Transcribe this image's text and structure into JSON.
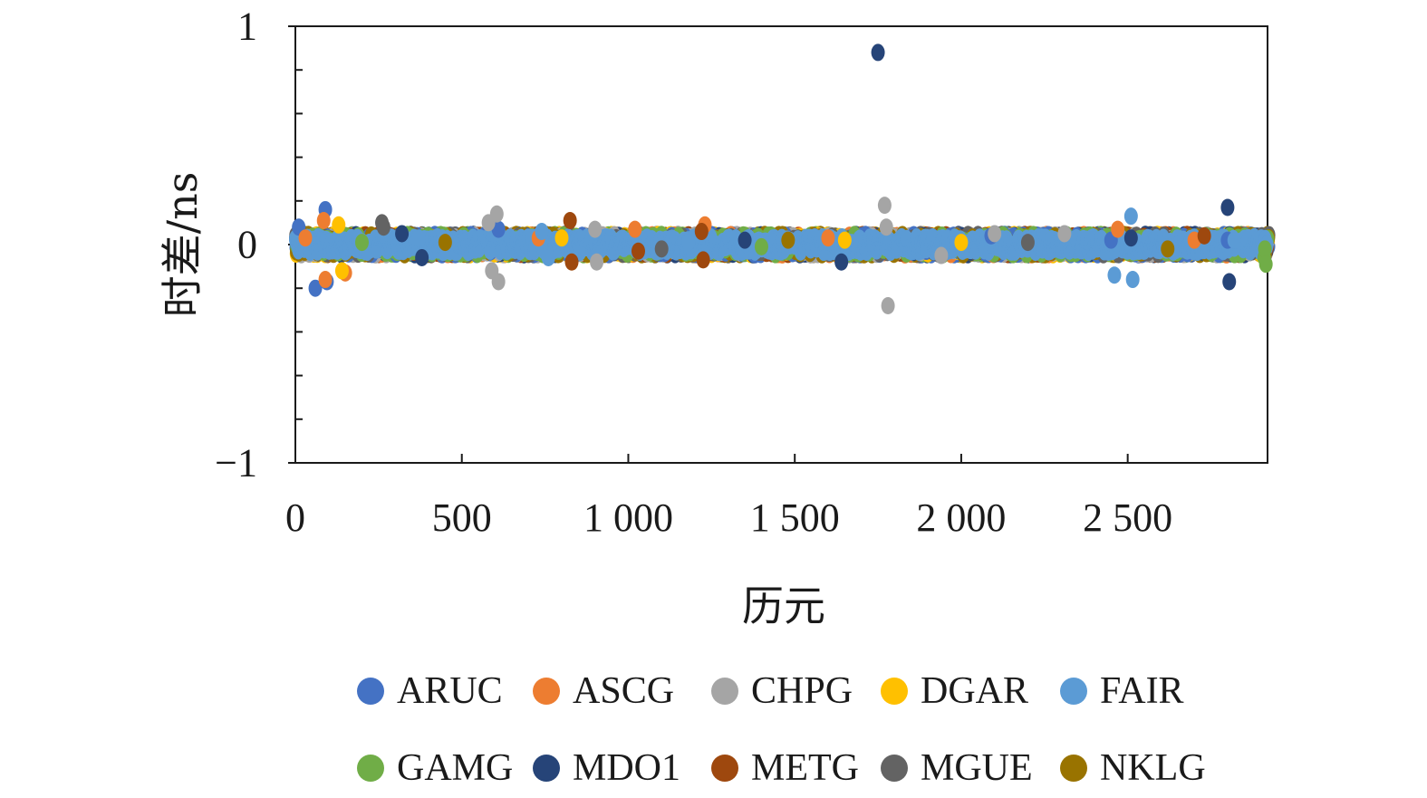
{
  "chart_data": {
    "type": "scatter",
    "title": "",
    "xlabel": "历元",
    "ylabel": "时差/ns",
    "xlim": [
      0,
      2920
    ],
    "ylim": [
      -1,
      1
    ],
    "x_ticks": [
      {
        "value": 0,
        "label": "0"
      },
      {
        "value": 500,
        "label": "500"
      },
      {
        "value": 1000,
        "label": "1 000"
      },
      {
        "value": 1500,
        "label": "1 500"
      },
      {
        "value": 2000,
        "label": "2 000"
      },
      {
        "value": 2500,
        "label": "2 500"
      }
    ],
    "y_ticks": [
      {
        "value": 1,
        "label": "1"
      },
      {
        "value": 0,
        "label": "0"
      },
      {
        "value": -1,
        "label": "−1"
      }
    ],
    "y_minor_ticks": [
      0.8,
      0.6,
      0.4,
      0.2,
      -0.2,
      -0.4,
      -0.6,
      -0.8
    ],
    "grid": false,
    "legend_position": "bottom",
    "series": [
      {
        "name": "ARUC",
        "color": "#4472C4",
        "points": [
          [
            10,
            0.08
          ],
          [
            60,
            -0.2
          ],
          [
            90,
            0.16
          ],
          [
            95,
            -0.17
          ],
          [
            610,
            0.07
          ],
          [
            2090,
            0.04
          ],
          [
            2450,
            0.02
          ],
          [
            2800,
            0.02
          ]
        ]
      },
      {
        "name": "ASCG",
        "color": "#ED7D31",
        "points": [
          [
            30,
            0.03
          ],
          [
            85,
            0.11
          ],
          [
            90,
            -0.16
          ],
          [
            150,
            -0.13
          ],
          [
            730,
            0.03
          ],
          [
            1020,
            0.07
          ],
          [
            1230,
            0.09
          ],
          [
            1600,
            0.03
          ],
          [
            2470,
            0.07
          ],
          [
            2700,
            0.02
          ]
        ]
      },
      {
        "name": "CHPG",
        "color": "#A5A5A5",
        "points": [
          [
            580,
            0.1
          ],
          [
            590,
            -0.12
          ],
          [
            605,
            0.14
          ],
          [
            610,
            -0.17
          ],
          [
            900,
            0.07
          ],
          [
            905,
            -0.08
          ],
          [
            1770,
            0.18
          ],
          [
            1775,
            0.08
          ],
          [
            1780,
            -0.28
          ],
          [
            1940,
            -0.05
          ],
          [
            2100,
            0.05
          ],
          [
            2310,
            0.05
          ]
        ]
      },
      {
        "name": "DGAR",
        "color": "#FFC000",
        "points": [
          [
            130,
            0.09
          ],
          [
            140,
            -0.12
          ],
          [
            800,
            0.03
          ],
          [
            1650,
            0.02
          ],
          [
            2000,
            0.01
          ]
        ]
      },
      {
        "name": "FAIR",
        "color": "#5B9BD5",
        "points": [
          [
            370,
            0.03
          ],
          [
            740,
            0.06
          ],
          [
            760,
            -0.06
          ],
          [
            1180,
            0.01
          ],
          [
            2510,
            0.13
          ],
          [
            2515,
            -0.16
          ],
          [
            2460,
            -0.14
          ],
          [
            2820,
            0.02
          ]
        ]
      },
      {
        "name": "GAMG",
        "color": "#70AD47",
        "points": [
          [
            2910,
            -0.06
          ],
          [
            2912,
            -0.02
          ],
          [
            2915,
            -0.09
          ],
          [
            200,
            0.01
          ],
          [
            1400,
            -0.01
          ]
        ]
      },
      {
        "name": "MDO1",
        "color": "#264478",
        "points": [
          [
            1750,
            0.88
          ],
          [
            2800,
            0.17
          ],
          [
            2805,
            -0.17
          ],
          [
            320,
            0.05
          ],
          [
            380,
            -0.06
          ],
          [
            1640,
            -0.08
          ],
          [
            2510,
            0.03
          ],
          [
            1350,
            0.02
          ]
        ]
      },
      {
        "name": "METG",
        "color": "#9E480E",
        "points": [
          [
            825,
            0.11
          ],
          [
            830,
            -0.08
          ],
          [
            1220,
            0.06
          ],
          [
            1225,
            -0.07
          ],
          [
            2730,
            0.04
          ],
          [
            1030,
            -0.03
          ]
        ]
      },
      {
        "name": "MGUE",
        "color": "#636363",
        "points": [
          [
            260,
            0.1
          ],
          [
            265,
            0.08
          ],
          [
            1100,
            -0.02
          ],
          [
            2200,
            0.01
          ]
        ]
      },
      {
        "name": "NKLG",
        "color": "#997300",
        "points": [
          [
            1480,
            0.02
          ],
          [
            2620,
            -0.02
          ],
          [
            450,
            0.01
          ]
        ]
      }
    ]
  }
}
